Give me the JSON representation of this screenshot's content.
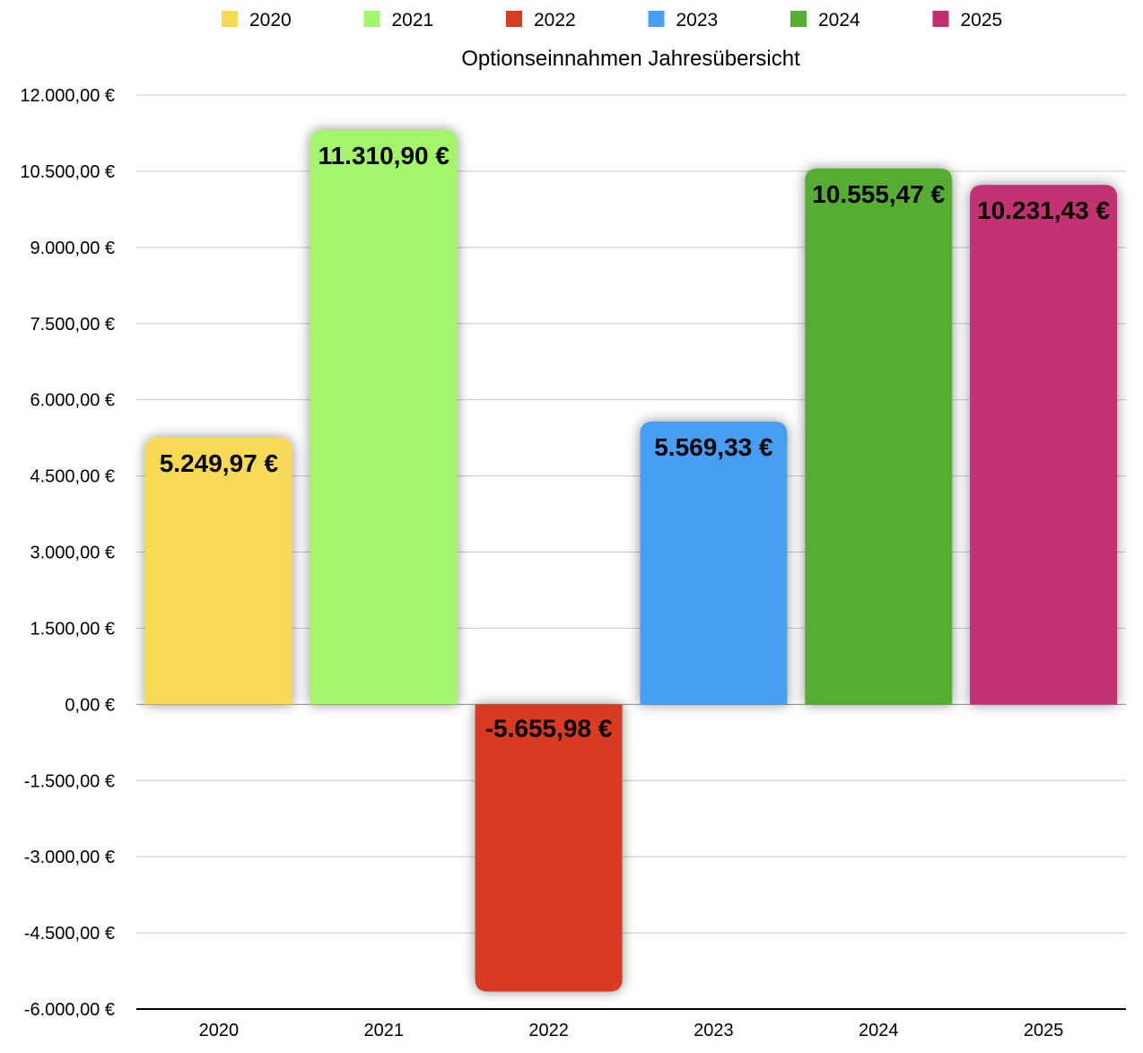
{
  "chart_data": {
    "type": "bar",
    "title": "Optionseinnahmen Jahresübersicht",
    "categories": [
      "2020",
      "2021",
      "2022",
      "2023",
      "2024",
      "2025"
    ],
    "values": [
      5249.97,
      11310.9,
      -5655.98,
      5569.33,
      10555.47,
      10231.43
    ],
    "value_labels": [
      "5.249,97 €",
      "11.310,90 €",
      "-5.655,98 €",
      "5.569,33 €",
      "10.555,47 €",
      "10.231,43 €"
    ],
    "colors": [
      "#f7d955",
      "#a3f56b",
      "#d93b24",
      "#479ff5",
      "#55ae33",
      "#c23073"
    ],
    "legend": [
      "2020",
      "2021",
      "2022",
      "2023",
      "2024",
      "2025"
    ],
    "legend_position": "top",
    "ylim": [
      -6000,
      12000
    ],
    "yticks": [
      12000,
      10500,
      9000,
      7500,
      6000,
      4500,
      3000,
      1500,
      0,
      -1500,
      -3000,
      -4500,
      -6000
    ],
    "ytick_labels": [
      "12.000,00 €",
      "10.500,00 €",
      "9.000,00 €",
      "7.500,00 €",
      "6.000,00 €",
      "4.500,00 €",
      "3.000,00 €",
      "1.500,00 €",
      "0,00 €",
      "-1.500,00 €",
      "-3.000,00 €",
      "-4.500,00 €",
      "-6.000,00 €"
    ],
    "xlabel": "",
    "ylabel": "",
    "grid": true
  }
}
